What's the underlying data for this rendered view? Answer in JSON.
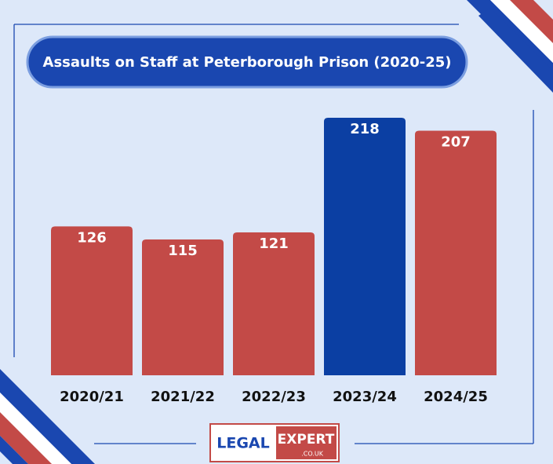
{
  "chart_data": {
    "type": "bar",
    "title": "Assaults on Staff at Peterborough Prison (2020-25)",
    "categories": [
      "2020/21",
      "2021/22",
      "2022/23",
      "2023/24",
      "2024/25"
    ],
    "values": [
      126,
      115,
      121,
      218,
      207
    ],
    "colors": [
      "#c34a47",
      "#c34a47",
      "#c34a47",
      "#0b3fa3",
      "#c34a47"
    ]
  },
  "logo": {
    "left": "LEGAL",
    "right": "EXPERT",
    "domain": ".CO.UK"
  }
}
